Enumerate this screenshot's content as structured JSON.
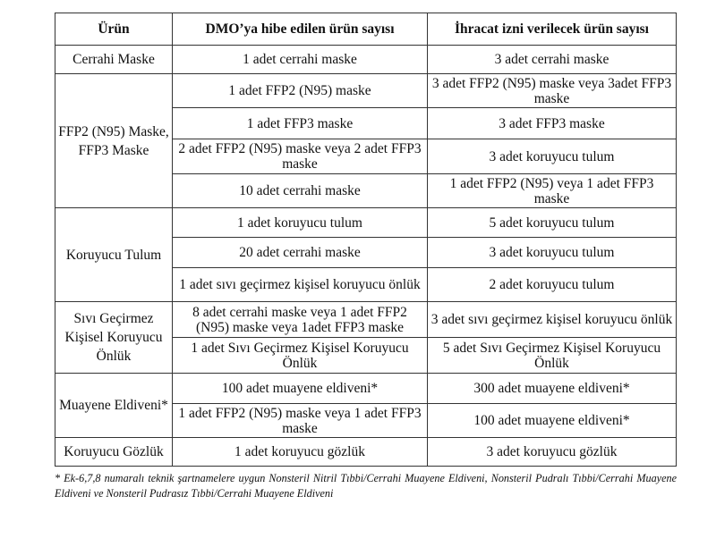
{
  "table": {
    "headers": [
      "Ürün",
      "DMO’ya hibe edilen ürün sayısı",
      "İhracat izni verilecek ürün sayısı"
    ],
    "groups": [
      {
        "product": "Cerrahi Maske",
        "rows": [
          {
            "donated": "1 adet cerrahi maske",
            "export": "3 adet cerrahi maske"
          }
        ]
      },
      {
        "product": "FFP2 (N95) Maske, FFP3 Maske",
        "rows": [
          {
            "donated": "1 adet FFP2 (N95) maske",
            "export": "3 adet FFP2 (N95) maske veya 3adet FFP3 maske"
          },
          {
            "donated": "1 adet FFP3 maske",
            "export": "3 adet FFP3 maske"
          },
          {
            "donated": "2 adet FFP2 (N95) maske veya 2 adet FFP3 maske",
            "export": "3 adet koruyucu tulum"
          },
          {
            "donated": "10 adet cerrahi maske",
            "export": "1 adet FFP2 (N95) veya 1 adet FFP3 maske"
          }
        ]
      },
      {
        "product": "Koruyucu Tulum",
        "rows": [
          {
            "donated": "1 adet koruyucu tulum",
            "export": "5 adet koruyucu tulum"
          },
          {
            "donated": "20 adet cerrahi maske",
            "export": "3 adet koruyucu tulum"
          },
          {
            "donated": "1 adet sıvı geçirmez kişisel koruyucu önlük",
            "export": "2 adet koruyucu tulum"
          }
        ]
      },
      {
        "product": "Sıvı Geçirmez Kişisel Koruyucu Önlük",
        "rows": [
          {
            "donated": "8 adet cerrahi maske veya 1 adet FFP2 (N95) maske veya 1adet FFP3 maske",
            "export": "3 adet sıvı geçirmez kişisel koruyucu önlük"
          },
          {
            "donated": "1 adet Sıvı Geçirmez Kişisel Koruyucu Önlük",
            "export": "5 adet Sıvı Geçirmez Kişisel Koruyucu Önlük"
          }
        ]
      },
      {
        "product": "Muayene Eldiveni*",
        "rows": [
          {
            "donated": "100 adet muayene eldiveni*",
            "export": "300 adet muayene eldiveni*"
          },
          {
            "donated": "1 adet FFP2 (N95) maske veya 1 adet FFP3 maske",
            "export": "100 adet muayene eldiveni*"
          }
        ]
      },
      {
        "product": "Koruyucu Gözlük",
        "rows": [
          {
            "donated": "1 adet koruyucu gözlük",
            "export": "3 adet koruyucu gözlük"
          }
        ]
      }
    ]
  },
  "footnote": "* Ek-6,7,8 numaralı teknik şartnamelere uygun Nonsteril Nitril Tıbbi/Cerrahi Muayene Eldiveni, Nonsteril Pudralı Tıbbi/Cerrahi Muayene Eldiveni ve Nonsteril Pudrasız Tıbbi/Cerrahi Muayene Eldiveni"
}
